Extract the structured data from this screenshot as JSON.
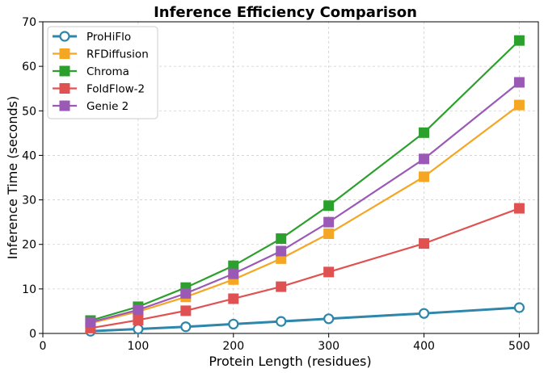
{
  "chart_data": {
    "type": "line",
    "title": "Inference Efficiency Comparison",
    "xlabel": "Protein Length (residues)",
    "ylabel": "Inference Time (seconds)",
    "xlim": [
      0,
      520
    ],
    "ylim": [
      0,
      70
    ],
    "xticks": [
      0,
      100,
      200,
      300,
      400,
      500
    ],
    "yticks": [
      0,
      10,
      20,
      30,
      40,
      50,
      60,
      70
    ],
    "grid": true,
    "legend_position": "top-left",
    "x": [
      50,
      100,
      150,
      200,
      250,
      300,
      400,
      500
    ],
    "series": [
      {
        "name": "ProHiFlo",
        "color": "#2e86ab",
        "marker": "open-circle",
        "values": [
          0.5,
          1.0,
          1.5,
          2.1,
          2.7,
          3.3,
          4.5,
          5.8
        ]
      },
      {
        "name": "RFDiffusion",
        "color": "#f5a623",
        "marker": "square",
        "values": [
          2.3,
          4.9,
          8.2,
          12.1,
          16.8,
          22.4,
          35.2,
          51.3
        ]
      },
      {
        "name": "Chroma",
        "color": "#2ca02c",
        "marker": "square",
        "values": [
          2.9,
          6.0,
          10.3,
          15.2,
          21.3,
          28.7,
          45.1,
          65.8
        ]
      },
      {
        "name": "FoldFlow-2",
        "color": "#e05252",
        "marker": "square",
        "values": [
          1.2,
          3.0,
          5.1,
          7.8,
          10.5,
          13.8,
          20.2,
          28.1
        ]
      },
      {
        "name": "Genie 2",
        "color": "#9b59b6",
        "marker": "square",
        "values": [
          2.5,
          5.3,
          9.0,
          13.4,
          18.5,
          25.0,
          39.2,
          56.4
        ]
      }
    ]
  }
}
